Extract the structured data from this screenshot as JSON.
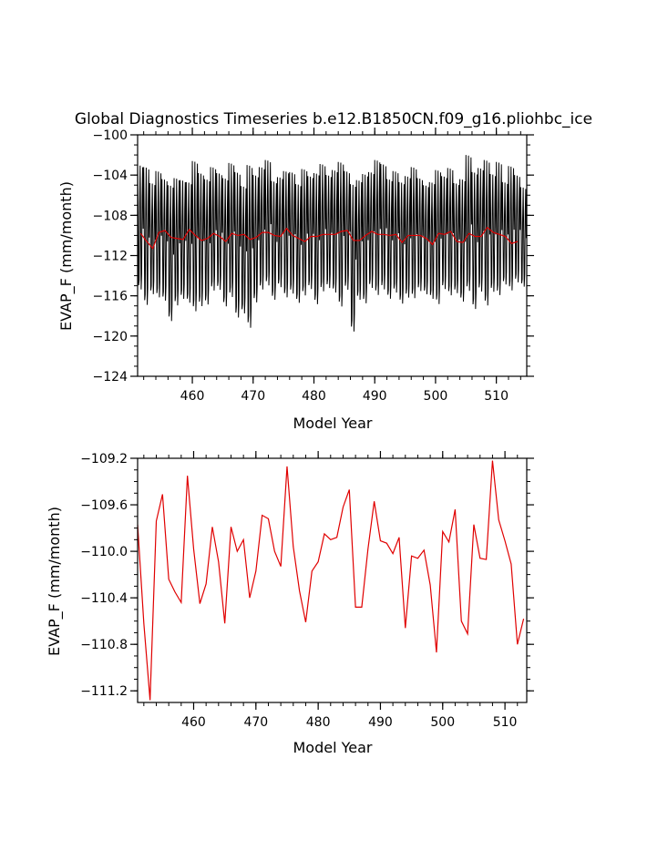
{
  "title": "Global Diagnostics Timeseries b.e12.B1850CN.f09_g16.pliohbc_ice",
  "chart_data": [
    {
      "type": "line",
      "title": "Global Diagnostics Timeseries b.e12.B1850CN.f09_g16.pliohbc_ice",
      "xlabel": "Model Year",
      "ylabel": "EVAP_F (mm/month)",
      "xlim": [
        451,
        515
      ],
      "ylim": [
        -124,
        -100
      ],
      "xticks": [
        460,
        470,
        480,
        490,
        500,
        510
      ],
      "yticks": [
        -100,
        -104,
        -108,
        -112,
        -116,
        -120,
        -124
      ],
      "grid": false,
      "monthly_peaks": [
        -103.0,
        -103.2,
        -104.8,
        -103.6,
        -104.4,
        -105.0,
        -104.3,
        -104.5,
        -104.7,
        -102.6,
        -103.8,
        -104.4,
        -103.2,
        -103.8,
        -104.3,
        -102.8,
        -103.7,
        -105.1,
        -103.0,
        -104.0,
        -103.2,
        -102.5,
        -104.6,
        -104.2,
        -103.6,
        -103.7,
        -104.9,
        -103.4,
        -104.1,
        -103.8,
        -102.9,
        -104.0,
        -103.5,
        -102.7,
        -103.6,
        -104.9,
        -104.5,
        -103.9,
        -103.7,
        -102.5,
        -102.9,
        -104.4,
        -103.6,
        -104.7,
        -104.1,
        -103.2,
        -104.3,
        -105.0,
        -104.7,
        -103.5,
        -104.1,
        -103.3,
        -104.8,
        -104.4,
        -102.0,
        -103.7,
        -103.3,
        -102.5,
        -103.9,
        -102.7,
        -104.7,
        -103.1,
        -104.0,
        -105.2
      ],
      "monthly_troughs": [
        -116.0,
        -117.6,
        -116.4,
        -116.8,
        -117.1,
        -119.2,
        -117.6,
        -116.9,
        -117.3,
        -118.3,
        -117.7,
        -117.5,
        -116.1,
        -116.0,
        -117.7,
        -116.8,
        -118.9,
        -118.4,
        -120.0,
        -117.3,
        -116.0,
        -115.6,
        -117.0,
        -115.7,
        -116.8,
        -116.4,
        -117.3,
        -116.6,
        -115.9,
        -117.5,
        -116.2,
        -115.8,
        -116.3,
        -117.8,
        -116.0,
        -120.3,
        -117.0,
        -117.4,
        -115.8,
        -116.6,
        -116.0,
        -116.9,
        -116.3,
        -117.4,
        -116.8,
        -116.9,
        -116.1,
        -116.4,
        -116.9,
        -117.5,
        -115.9,
        -116.6,
        -116.3,
        -117.2,
        -116.2,
        -118.0,
        -116.2,
        -117.7,
        -116.2,
        -116.6,
        -115.4,
        -116.1,
        -115.2,
        -115.6
      ],
      "series": [
        {
          "values": [
            -109.8,
            -110.6,
            -111.3,
            -109.7,
            -109.5,
            -110.2,
            -110.3,
            -110.4,
            -109.4,
            -110.0,
            -110.5,
            -110.3,
            -109.8,
            -110.1,
            -110.6,
            -109.8,
            -110.0,
            -109.9,
            -110.4,
            -110.2,
            -109.7,
            -109.7,
            -110.0,
            -110.1,
            -109.3,
            -110.0,
            -110.3,
            -110.6,
            -110.1,
            -110.1,
            -109.9,
            -109.9,
            -109.9,
            -109.6,
            -109.5,
            -110.5,
            -110.5,
            -110.0,
            -109.6,
            -109.9,
            -109.9,
            -110.0,
            -109.9,
            -110.7,
            -110.0,
            -110.0,
            -110.0,
            -110.3,
            -110.9,
            -109.8,
            -109.9,
            -109.6,
            -110.6,
            -110.7,
            -109.8,
            -110.1,
            -110.1,
            -109.2,
            -109.7,
            -109.9,
            -110.1,
            -110.8,
            -110.6
          ],
          "color": "#e00000"
        }
      ]
    },
    {
      "type": "line",
      "xlabel": "Model Year",
      "ylabel": "EVAP_F (mm/month)",
      "xlim": [
        451,
        513.5
      ],
      "ylim": [
        -111.3,
        -109.2
      ],
      "xticks": [
        460,
        470,
        480,
        490,
        500,
        510
      ],
      "yticks": [
        -109.2,
        -109.6,
        -110.0,
        -110.4,
        -110.8,
        -111.2
      ],
      "grid": false,
      "series": [
        {
          "x": [
            451,
            452,
            453,
            454,
            455,
            456,
            457,
            458,
            459,
            460,
            461,
            462,
            463,
            464,
            465,
            466,
            467,
            468,
            469,
            470,
            471,
            472,
            473,
            474,
            475,
            476,
            477,
            478,
            479,
            480,
            481,
            482,
            483,
            484,
            485,
            486,
            487,
            488,
            489,
            490,
            491,
            492,
            493,
            494,
            495,
            496,
            497,
            498,
            499,
            500,
            501,
            502,
            503,
            504,
            505,
            506,
            507,
            508,
            509,
            510,
            511,
            512,
            513
          ],
          "values": [
            -109.77,
            -110.62,
            -111.28,
            -109.74,
            -109.51,
            -110.24,
            -110.35,
            -110.44,
            -109.35,
            -109.98,
            -110.45,
            -110.28,
            -109.79,
            -110.09,
            -110.62,
            -109.79,
            -110.0,
            -109.9,
            -110.4,
            -110.17,
            -109.69,
            -109.72,
            -110.0,
            -110.13,
            -109.27,
            -109.96,
            -110.34,
            -110.61,
            -110.17,
            -110.09,
            -109.85,
            -109.9,
            -109.88,
            -109.62,
            -109.47,
            -110.48,
            -110.48,
            -109.98,
            -109.57,
            -109.91,
            -109.93,
            -110.02,
            -109.88,
            -110.66,
            -110.04,
            -110.06,
            -109.99,
            -110.29,
            -110.87,
            -109.83,
            -109.92,
            -109.64,
            -110.6,
            -110.71,
            -109.77,
            -110.06,
            -110.07,
            -109.22,
            -109.73,
            -109.91,
            -110.11,
            -110.8,
            -110.58
          ],
          "color": "#e00000"
        }
      ]
    }
  ]
}
